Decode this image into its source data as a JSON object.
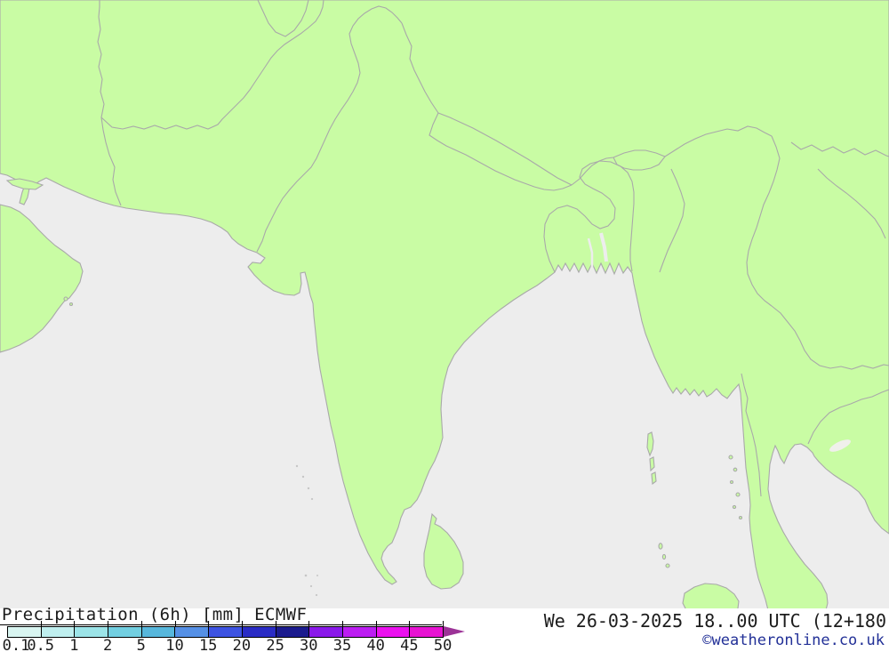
{
  "legend": {
    "title": "Precipitation (6h) [mm] ECMWF",
    "labels": [
      "0.1",
      "0.5",
      "1",
      "2",
      "5",
      "10",
      "15",
      "20",
      "25",
      "30",
      "35",
      "40",
      "45",
      "50"
    ],
    "colors": [
      "#d9f5f1",
      "#bfefef",
      "#9ce4e8",
      "#72cfe1",
      "#57b7dc",
      "#5590e6",
      "#3d53e2",
      "#2a2cc5",
      "#1b1b8e",
      "#8a19ea",
      "#bc1df2",
      "#eb11ef",
      "#e713d2"
    ],
    "overflow_arrow_color": "#9c3397"
  },
  "footer": {
    "datetime": "We 26-03-2025 18..00 UTC (12+180",
    "copyright": "©weatheronline.co.uk",
    "copyright_color": "#223097"
  },
  "map": {
    "land_color": "#c9fca4",
    "sea_color": "#ededed",
    "border_color": "#a9a9a9",
    "lake_color": "#f0f0ec"
  }
}
